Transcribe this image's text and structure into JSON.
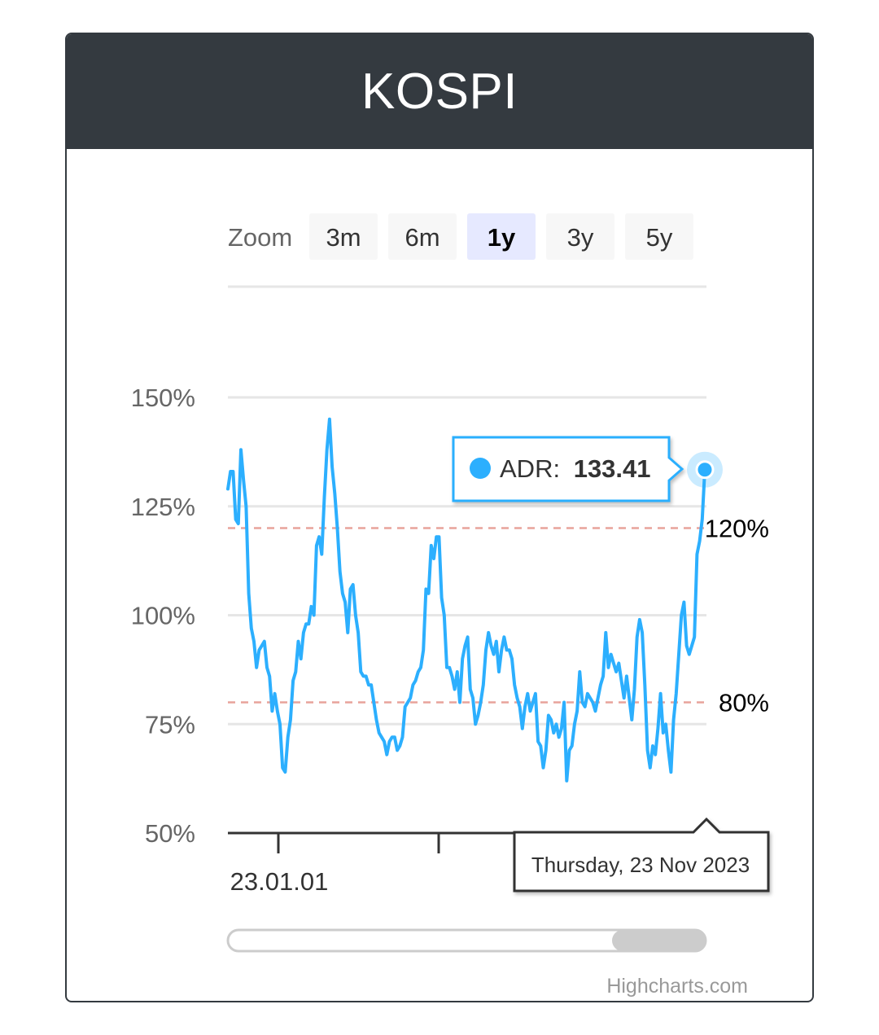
{
  "card": {
    "title": "KOSPI"
  },
  "zoom": {
    "label": "Zoom",
    "buttons": [
      "3m",
      "6m",
      "1y",
      "3y",
      "5y"
    ],
    "selected": "1y"
  },
  "chart_data": {
    "type": "line",
    "title": "",
    "xlabel": "",
    "ylabel": "",
    "ylim": [
      50,
      150
    ],
    "y_ticks": [
      "150%",
      "125%",
      "100%",
      "75%",
      "50%"
    ],
    "y_tick_values": [
      150,
      125,
      100,
      75,
      50
    ],
    "x_tick_labels": [
      "23.01.01"
    ],
    "grid": true,
    "series": [
      {
        "name": "ADR",
        "color": "#2caffe",
        "values": [
          129,
          133,
          133,
          122,
          121,
          138,
          131,
          125,
          105,
          97,
          94,
          88,
          92,
          93,
          94,
          88,
          86,
          78,
          82,
          78,
          75,
          65,
          64,
          72,
          76,
          85,
          87,
          94,
          90,
          96,
          98,
          98,
          102,
          100,
          116,
          118,
          114,
          127,
          138,
          145,
          134,
          128,
          120,
          110,
          105,
          103,
          96,
          106,
          107,
          100,
          96,
          87,
          86,
          86,
          84,
          84,
          80,
          76,
          73,
          72,
          71,
          68,
          71,
          72,
          72,
          69,
          70,
          72,
          79,
          80,
          81,
          84,
          85,
          87,
          88,
          92,
          106,
          105,
          116,
          113,
          118,
          118,
          104,
          100,
          88,
          88,
          86,
          83,
          87,
          80,
          90,
          93,
          95,
          83,
          81,
          75,
          77,
          80,
          84,
          92,
          96,
          93,
          91,
          94,
          87,
          92,
          95,
          92,
          92,
          90,
          84,
          81,
          79,
          74,
          79,
          82,
          78,
          80,
          82,
          71,
          70,
          65,
          69,
          77,
          76,
          73,
          75,
          72,
          74,
          80,
          62,
          69,
          70,
          75,
          78,
          87,
          80,
          79,
          82,
          81,
          80,
          78,
          81,
          84,
          86,
          96,
          88,
          91,
          89,
          87,
          89,
          85,
          81,
          86,
          81,
          76,
          83,
          95,
          99,
          96,
          84,
          69,
          65,
          70,
          68,
          74,
          82,
          73,
          75,
          69,
          64,
          76,
          82,
          91,
          100,
          103,
          93,
          91,
          93,
          95,
          114,
          117,
          122,
          133.41
        ],
        "annotations": {
          "point_tooltip": "ADR:",
          "value_label": "133.41",
          "date_label": "Thursday, 23 Nov 2023"
        }
      }
    ],
    "plot_lines": [
      {
        "value": 120,
        "label": "120%",
        "color": "#e8a39b"
      },
      {
        "value": 80,
        "label": "80%",
        "color": "#e8a39b"
      }
    ],
    "navigator": {
      "range": "last 1y of series"
    }
  },
  "credits": {
    "text": "Highcharts.com"
  }
}
